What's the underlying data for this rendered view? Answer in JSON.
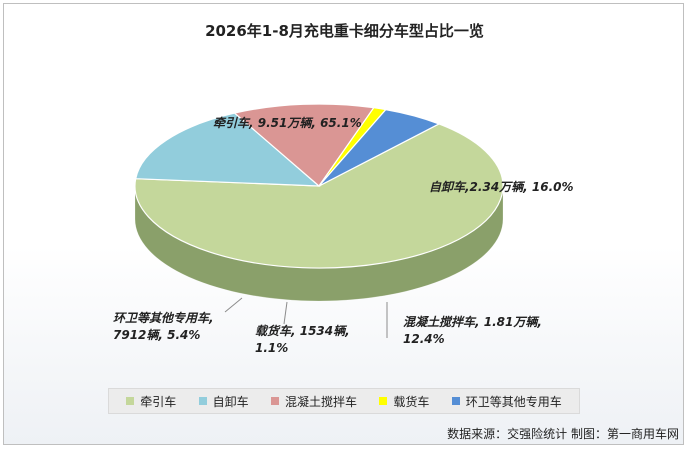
{
  "title": "2026年1-8月充电重卡细分车型占比一览",
  "source": "数据来源：交强险统计 制图：第一商用车网",
  "chart_data": {
    "type": "pie",
    "title": "2026年1-8月充电重卡细分车型占比一览",
    "legend_position": "bottom",
    "slices": [
      {
        "name": "牵引车",
        "value": 65.1,
        "color": "#c4d79b",
        "side": "#8aa06a",
        "label_lines": [
          "牵引车, 9.51万辆, 65.1%"
        ]
      },
      {
        "name": "自卸车",
        "value": 16.0,
        "color": "#92cddc",
        "side": "#3a5660",
        "label_lines": [
          "自卸车,2.34万辆, 16.0%"
        ]
      },
      {
        "name": "混凝土搅拌车",
        "value": 12.4,
        "color": "#da9694",
        "side": "#5a3331",
        "label_lines": [
          "混凝土搅拌车, 1.81万辆,",
          "12.4%"
        ]
      },
      {
        "name": "载货车",
        "value": 1.1,
        "color": "#ffff00",
        "side": "#9a9a10",
        "label_lines": [
          "载货车, 1534辆,",
          "1.1%"
        ]
      },
      {
        "name": "环卫等其他专用车",
        "value": 5.4,
        "color": "#558ed5",
        "side": "#22466e",
        "label_lines": [
          "环卫等其他专用车,",
          "7912辆, 5.4%"
        ]
      }
    ]
  }
}
